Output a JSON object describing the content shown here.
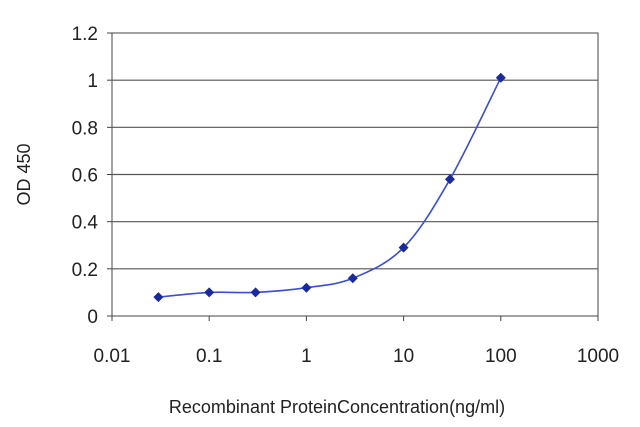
{
  "chart_data": {
    "type": "line",
    "xlabel": "Recombinant ProteinConcentration(ng/ml)",
    "ylabel": "OD 450",
    "x_scale": "log",
    "xlim": [
      0.01,
      1000
    ],
    "ylim": [
      0,
      1.2
    ],
    "x_ticks": [
      "0.01",
      "0.1",
      "1",
      "10",
      "100",
      "1000"
    ],
    "y_ticks": [
      "0",
      "0.2",
      "0.4",
      "0.6",
      "0.8",
      "1",
      "1.2"
    ],
    "grid": "horizontal",
    "legend": "none",
    "series": [
      {
        "color": "#1a2a9a",
        "x": [
          0.03,
          0.1,
          0.3,
          1,
          3,
          10,
          30,
          100
        ],
        "y": [
          0.08,
          0.1,
          0.1,
          0.12,
          0.16,
          0.29,
          0.58,
          1.01
        ]
      }
    ]
  }
}
